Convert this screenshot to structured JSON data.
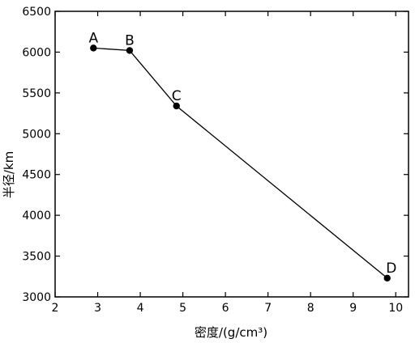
{
  "chart_data": {
    "type": "line",
    "title": "",
    "xlabel": "密度/(g/cm³)",
    "ylabel": "半径/km",
    "xlim": [
      2,
      10.3
    ],
    "ylim": [
      3000,
      6500
    ],
    "xticks": [
      "2",
      "3",
      "4",
      "5",
      "6",
      "7",
      "8",
      "9",
      "10"
    ],
    "yticks": [
      "3000",
      "3500",
      "4000",
      "4500",
      "5000",
      "5500",
      "6000",
      "6500"
    ],
    "grid": false,
    "legend": "none",
    "series": [
      {
        "points": [
          {
            "label": "A",
            "x": 2.9,
            "y": 6050
          },
          {
            "label": "B",
            "x": 3.75,
            "y": 6020
          },
          {
            "label": "C",
            "x": 4.85,
            "y": 5340
          },
          {
            "label": "D",
            "x": 9.8,
            "y": 3230
          }
        ]
      }
    ],
    "colors": {
      "line": "#000000",
      "marker": "#000000",
      "frame": "#000000"
    }
  }
}
